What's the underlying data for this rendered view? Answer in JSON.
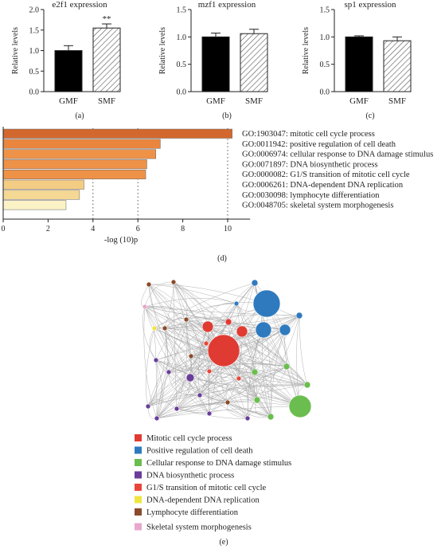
{
  "chart_data": [
    {
      "panel": "(a)",
      "type": "bar",
      "title": "e2f1 expression",
      "ylabel": "Relative levels",
      "categories": [
        "GMF",
        "SMF"
      ],
      "values": [
        1.0,
        1.55
      ],
      "errors": [
        0.12,
        0.1
      ],
      "ylim": [
        0,
        2.0
      ],
      "yticks": [
        "0.0",
        "0.5",
        "1.0",
        "1.5",
        "2.0"
      ],
      "annotation": "**",
      "fills": [
        "#000000",
        "hatch"
      ]
    },
    {
      "panel": "(b)",
      "type": "bar",
      "title": "mzf1 expression",
      "ylabel": "Relative levels",
      "categories": [
        "GMF",
        "SMF"
      ],
      "values": [
        1.0,
        1.06
      ],
      "errors": [
        0.07,
        0.08
      ],
      "ylim": [
        0,
        1.5
      ],
      "yticks": [
        "0.0",
        "0.5",
        "1.0",
        "1.5"
      ],
      "fills": [
        "#000000",
        "hatch"
      ]
    },
    {
      "panel": "(c)",
      "type": "bar",
      "title": "sp1 expression",
      "ylabel": "Relative levels",
      "categories": [
        "GMF",
        "SMF"
      ],
      "values": [
        1.0,
        0.93
      ],
      "errors": [
        0.02,
        0.07
      ],
      "ylim": [
        0,
        1.5
      ],
      "yticks": [
        "0.0",
        "0.5",
        "1.0",
        "1.5"
      ],
      "fills": [
        "#000000",
        "hatch"
      ]
    },
    {
      "panel": "(d)",
      "type": "bar",
      "orientation": "horizontal",
      "xlabel": "-log (10)p",
      "xlim": [
        0,
        11
      ],
      "xticks": [
        "0",
        "2",
        "4",
        "6",
        "8",
        "10"
      ],
      "grid": "dotted vertical at 4, 6, 10",
      "categories": [
        "GO:1903047: mitotic cell cycle process",
        "GO:0011942: positive regulation of cell death",
        "GO:0006974: cellular response to DNA damage stimulus",
        "GO:0071897: DNA biosynthetic process",
        "GO:0000082: G1/S transition of mitotic cell cycle",
        "GO:0006261: DNA-dependent DNA replication",
        "GO:0030098: lymphocyte differentiation",
        "GO:0048705: skeletal system morphogenesis"
      ],
      "values": [
        10.2,
        7.0,
        6.8,
        6.4,
        6.35,
        3.6,
        3.4,
        2.8
      ],
      "colors": [
        "#d2682e",
        "#e9853d",
        "#ee9248",
        "#ee9248",
        "#ee9248",
        "#f4cd84",
        "#f5d894",
        "#fbf2c6"
      ]
    }
  ],
  "network": {
    "panel": "(e)",
    "legend": [
      {
        "label": "Mitotic cell cycle process",
        "color": "#e03b33"
      },
      {
        "label": "Positive regulation of cell death",
        "color": "#2f7abf"
      },
      {
        "label": "Cellular response to DNA damage stimulus",
        "color": "#6cbd4f"
      },
      {
        "label": "DNA biosynthetic process",
        "color": "#6a3d9a"
      },
      {
        "label": "G1/S transition of mitotic cell cycle",
        "color": "#e8463a"
      },
      {
        "label": "DNA-dependent DNA replication",
        "color": "#f0e442"
      },
      {
        "label": "Lymphocyte differentiation",
        "color": "#8b4a2b"
      },
      {
        "label": "Skeletal system morphogenesis",
        "color": "#e8a8cc"
      }
    ]
  }
}
